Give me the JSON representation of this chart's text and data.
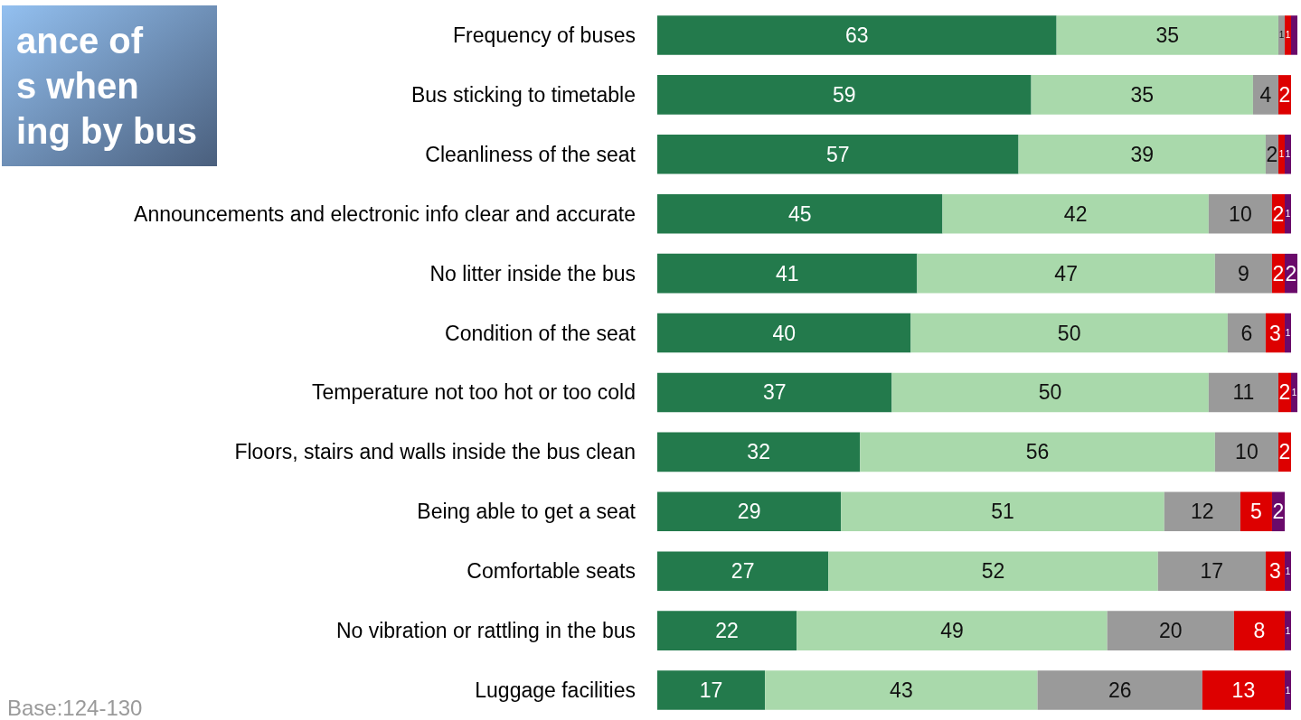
{
  "chart_data": {
    "type": "bar",
    "orientation": "horizontal",
    "stacked": true,
    "title": "ance of\ns when\ning by bus",
    "annotations": [
      "Base:124-130"
    ],
    "categories": [
      "Frequency of buses",
      "Bus sticking to timetable",
      "Cleanliness of the seat",
      "Announcements and electronic info clear and accurate",
      "No litter inside the bus",
      "Condition of the seat",
      "Temperature not too hot or too cold",
      "Floors, stairs and walls inside the bus clean",
      "Being able to get a seat",
      "Comfortable seats",
      "No vibration or rattling in the bus",
      "Luggage facilities"
    ],
    "series": [
      {
        "color": "#237a4c",
        "values": [
          63,
          59,
          57,
          45,
          41,
          40,
          37,
          32,
          29,
          27,
          22,
          17
        ],
        "value_labels": [
          "63",
          "59",
          "57",
          "45",
          "41",
          "40",
          "37",
          "32",
          "29",
          "27",
          "22",
          "17"
        ]
      },
      {
        "color": "#a9d9ab",
        "values": [
          35,
          35,
          39,
          42,
          47,
          50,
          50,
          56,
          51,
          52,
          49,
          43
        ],
        "value_labels": [
          "35",
          "35",
          "39",
          "42",
          "47",
          "50",
          "50",
          "56",
          "51",
          "52",
          "49",
          "43"
        ]
      },
      {
        "color": "#9a9a9a",
        "values": [
          1,
          4,
          2,
          10,
          9,
          6,
          11,
          10,
          12,
          17,
          20,
          26
        ],
        "value_labels": [
          "1",
          "4",
          "2",
          "10",
          "9",
          "6",
          "11",
          "10",
          "12",
          "17",
          "20",
          "26"
        ]
      },
      {
        "color": "#dd0000",
        "values": [
          1,
          2,
          1,
          2,
          2,
          3,
          2,
          2,
          5,
          3,
          8,
          13
        ],
        "value_labels": [
          "1",
          "2",
          "1",
          "2",
          "2",
          "3",
          "2",
          "2",
          "5",
          "3",
          "8",
          "13"
        ]
      },
      {
        "color": "#6a0a6a",
        "values": [
          1,
          null,
          1,
          1,
          2,
          1,
          1,
          null,
          2,
          1,
          1,
          1
        ],
        "value_labels": [
          null,
          null,
          "1",
          "1",
          "2",
          "1",
          "1",
          null,
          "2",
          "1",
          "1",
          "1"
        ]
      }
    ],
    "tick_labels": "y"
  }
}
